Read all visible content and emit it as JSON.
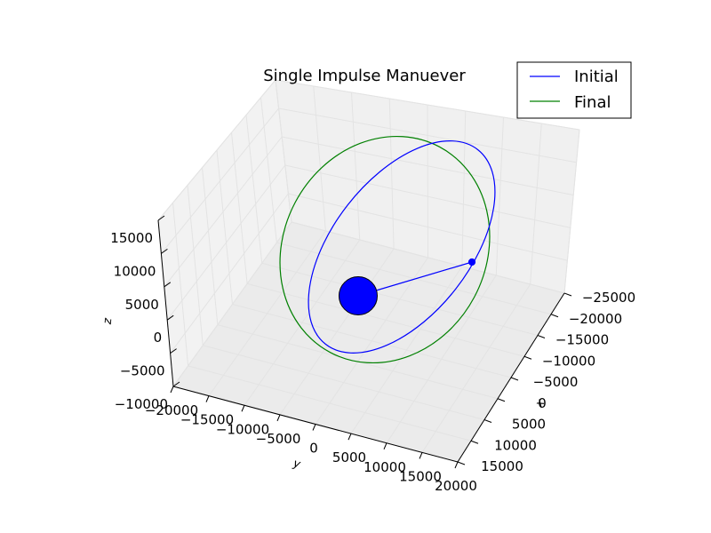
{
  "chart_data": {
    "type": "line",
    "title": "Single Impulse Manuever",
    "xlabel": "x",
    "ylabel": "y",
    "zlabel": "z",
    "x_ticks": [
      "−25000",
      "−20000",
      "−15000",
      "−10000",
      "−5000",
      "0",
      "5000",
      "10000",
      "15000"
    ],
    "y_ticks": [
      "−20000",
      "−15000",
      "−10000",
      "−5000",
      "0",
      "5000",
      "10000",
      "15000",
      "20000"
    ],
    "z_ticks": [
      "15000",
      "10000",
      "5000",
      "0",
      "−5000",
      "−10000"
    ],
    "legend_position": "top-right",
    "legend": [
      {
        "name": "Initial",
        "color": "#0000ff"
      },
      {
        "name": "Final",
        "color": "#008000"
      }
    ],
    "central_body_color": "#0000ff",
    "impulse_point_color": "#0000ff",
    "grid": true
  }
}
